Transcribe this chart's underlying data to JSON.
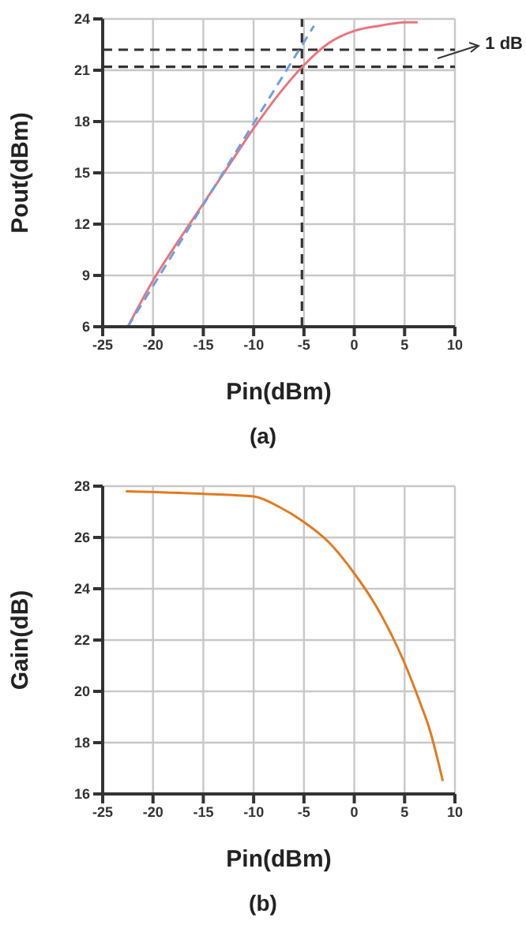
{
  "chart_data": [
    {
      "type": "line",
      "xlabel": "Pin(dBm)",
      "ylabel": "Pout(dBm)",
      "xlim": [
        -25,
        10
      ],
      "xticks": [
        -25,
        -20,
        -15,
        -10,
        -5,
        0,
        5,
        10
      ],
      "ylim": [
        6,
        24
      ],
      "yticks": [
        6,
        9,
        12,
        15,
        18,
        21,
        24
      ],
      "grid": true,
      "marker": "none",
      "series": [
        {
          "color": "#e8767e",
          "line_style": "solid",
          "x": [
            -22.5,
            -20,
            -17.5,
            -15,
            -12.5,
            -10,
            -7.5,
            -5,
            -2.5,
            0,
            2.5,
            5,
            6.3
          ],
          "values": [
            6,
            8.7,
            11,
            13.2,
            15.4,
            17.6,
            19.6,
            21.3,
            22.6,
            23.3,
            23.6,
            23.8,
            23.8
          ]
        },
        {
          "color": "#6f9fe0",
          "line_style": "dashed",
          "x": [
            -22.5,
            -4
          ],
          "values": [
            6,
            23.6
          ]
        }
      ],
      "ref_lines": [
        {
          "axis": "x",
          "value": -5.2,
          "color": "#333333",
          "line_style": "dashed"
        },
        {
          "axis": "y",
          "value": 22.2,
          "color": "#333333",
          "line_style": "dashed"
        },
        {
          "axis": "y",
          "value": 21.2,
          "color": "#333333",
          "line_style": "dashed"
        }
      ],
      "annotations": [
        "1 dB",
        "(a)"
      ]
    },
    {
      "type": "line",
      "xlabel": "Pin(dBm)",
      "ylabel": "Gain(dB)",
      "xlim": [
        -25,
        10
      ],
      "xticks": [
        -25,
        -20,
        -15,
        -10,
        -5,
        0,
        5,
        10
      ],
      "ylim": [
        16,
        28
      ],
      "yticks": [
        16,
        18,
        20,
        22,
        24,
        26,
        28
      ],
      "grid": true,
      "marker": "none",
      "series": [
        {
          "color": "#e07b22",
          "line_style": "solid",
          "x": [
            -22.7,
            -15,
            -10,
            -7.5,
            -5,
            -2.5,
            0,
            2.5,
            5,
            6.5,
            7.5,
            8.8
          ],
          "values": [
            27.8,
            27.7,
            27.6,
            27.2,
            26.6,
            25.8,
            24.6,
            23.1,
            21.1,
            19.6,
            18.5,
            16.5
          ]
        }
      ],
      "annotations": [
        "(b)"
      ]
    }
  ]
}
